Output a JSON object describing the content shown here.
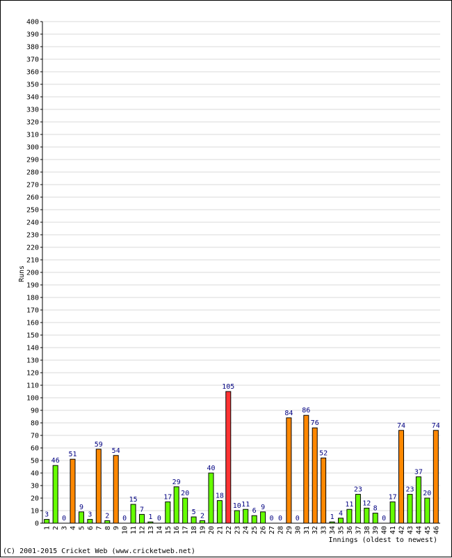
{
  "chart_data": {
    "type": "bar",
    "ylabel": "Runs",
    "xlabel": "Innings (oldest to newest)",
    "ylim": [
      0,
      400
    ],
    "ytick_step": 10,
    "grid": true,
    "categories": [
      "1",
      "2",
      "3",
      "4",
      "5",
      "6",
      "7",
      "8",
      "9",
      "10",
      "11",
      "12",
      "13",
      "14",
      "15",
      "16",
      "17",
      "18",
      "19",
      "20",
      "21",
      "22",
      "23",
      "24",
      "25",
      "26",
      "27",
      "28",
      "29",
      "30",
      "31",
      "32",
      "33",
      "34",
      "35",
      "36",
      "37",
      "38",
      "39",
      "40",
      "41",
      "42",
      "43",
      "44",
      "45",
      "46"
    ],
    "values": [
      3,
      46,
      0,
      51,
      9,
      3,
      59,
      2,
      54,
      0,
      15,
      7,
      1,
      0,
      17,
      29,
      20,
      5,
      2,
      40,
      18,
      105,
      10,
      11,
      6,
      9,
      0,
      0,
      84,
      0,
      86,
      76,
      52,
      1,
      4,
      11,
      23,
      12,
      8,
      0,
      17,
      74,
      23,
      37,
      20,
      74
    ],
    "bar_colors": [
      "green",
      "green",
      "green",
      "orange",
      "green",
      "green",
      "orange",
      "green",
      "orange",
      "green",
      "green",
      "green",
      "green",
      "green",
      "green",
      "green",
      "green",
      "green",
      "green",
      "green",
      "green",
      "red",
      "green",
      "green",
      "green",
      "green",
      "green",
      "green",
      "orange",
      "green",
      "orange",
      "orange",
      "orange",
      "green",
      "green",
      "green",
      "green",
      "green",
      "green",
      "green",
      "green",
      "orange",
      "green",
      "green",
      "green",
      "orange"
    ],
    "colors": {
      "green": "#66ff00",
      "orange": "#ff8800",
      "red": "#ff3333",
      "label": "#000080",
      "grid": "#d9d9d9"
    }
  },
  "footer": {
    "copyright": "(C) 2001-2015 Cricket Web (www.cricketweb.net)"
  }
}
